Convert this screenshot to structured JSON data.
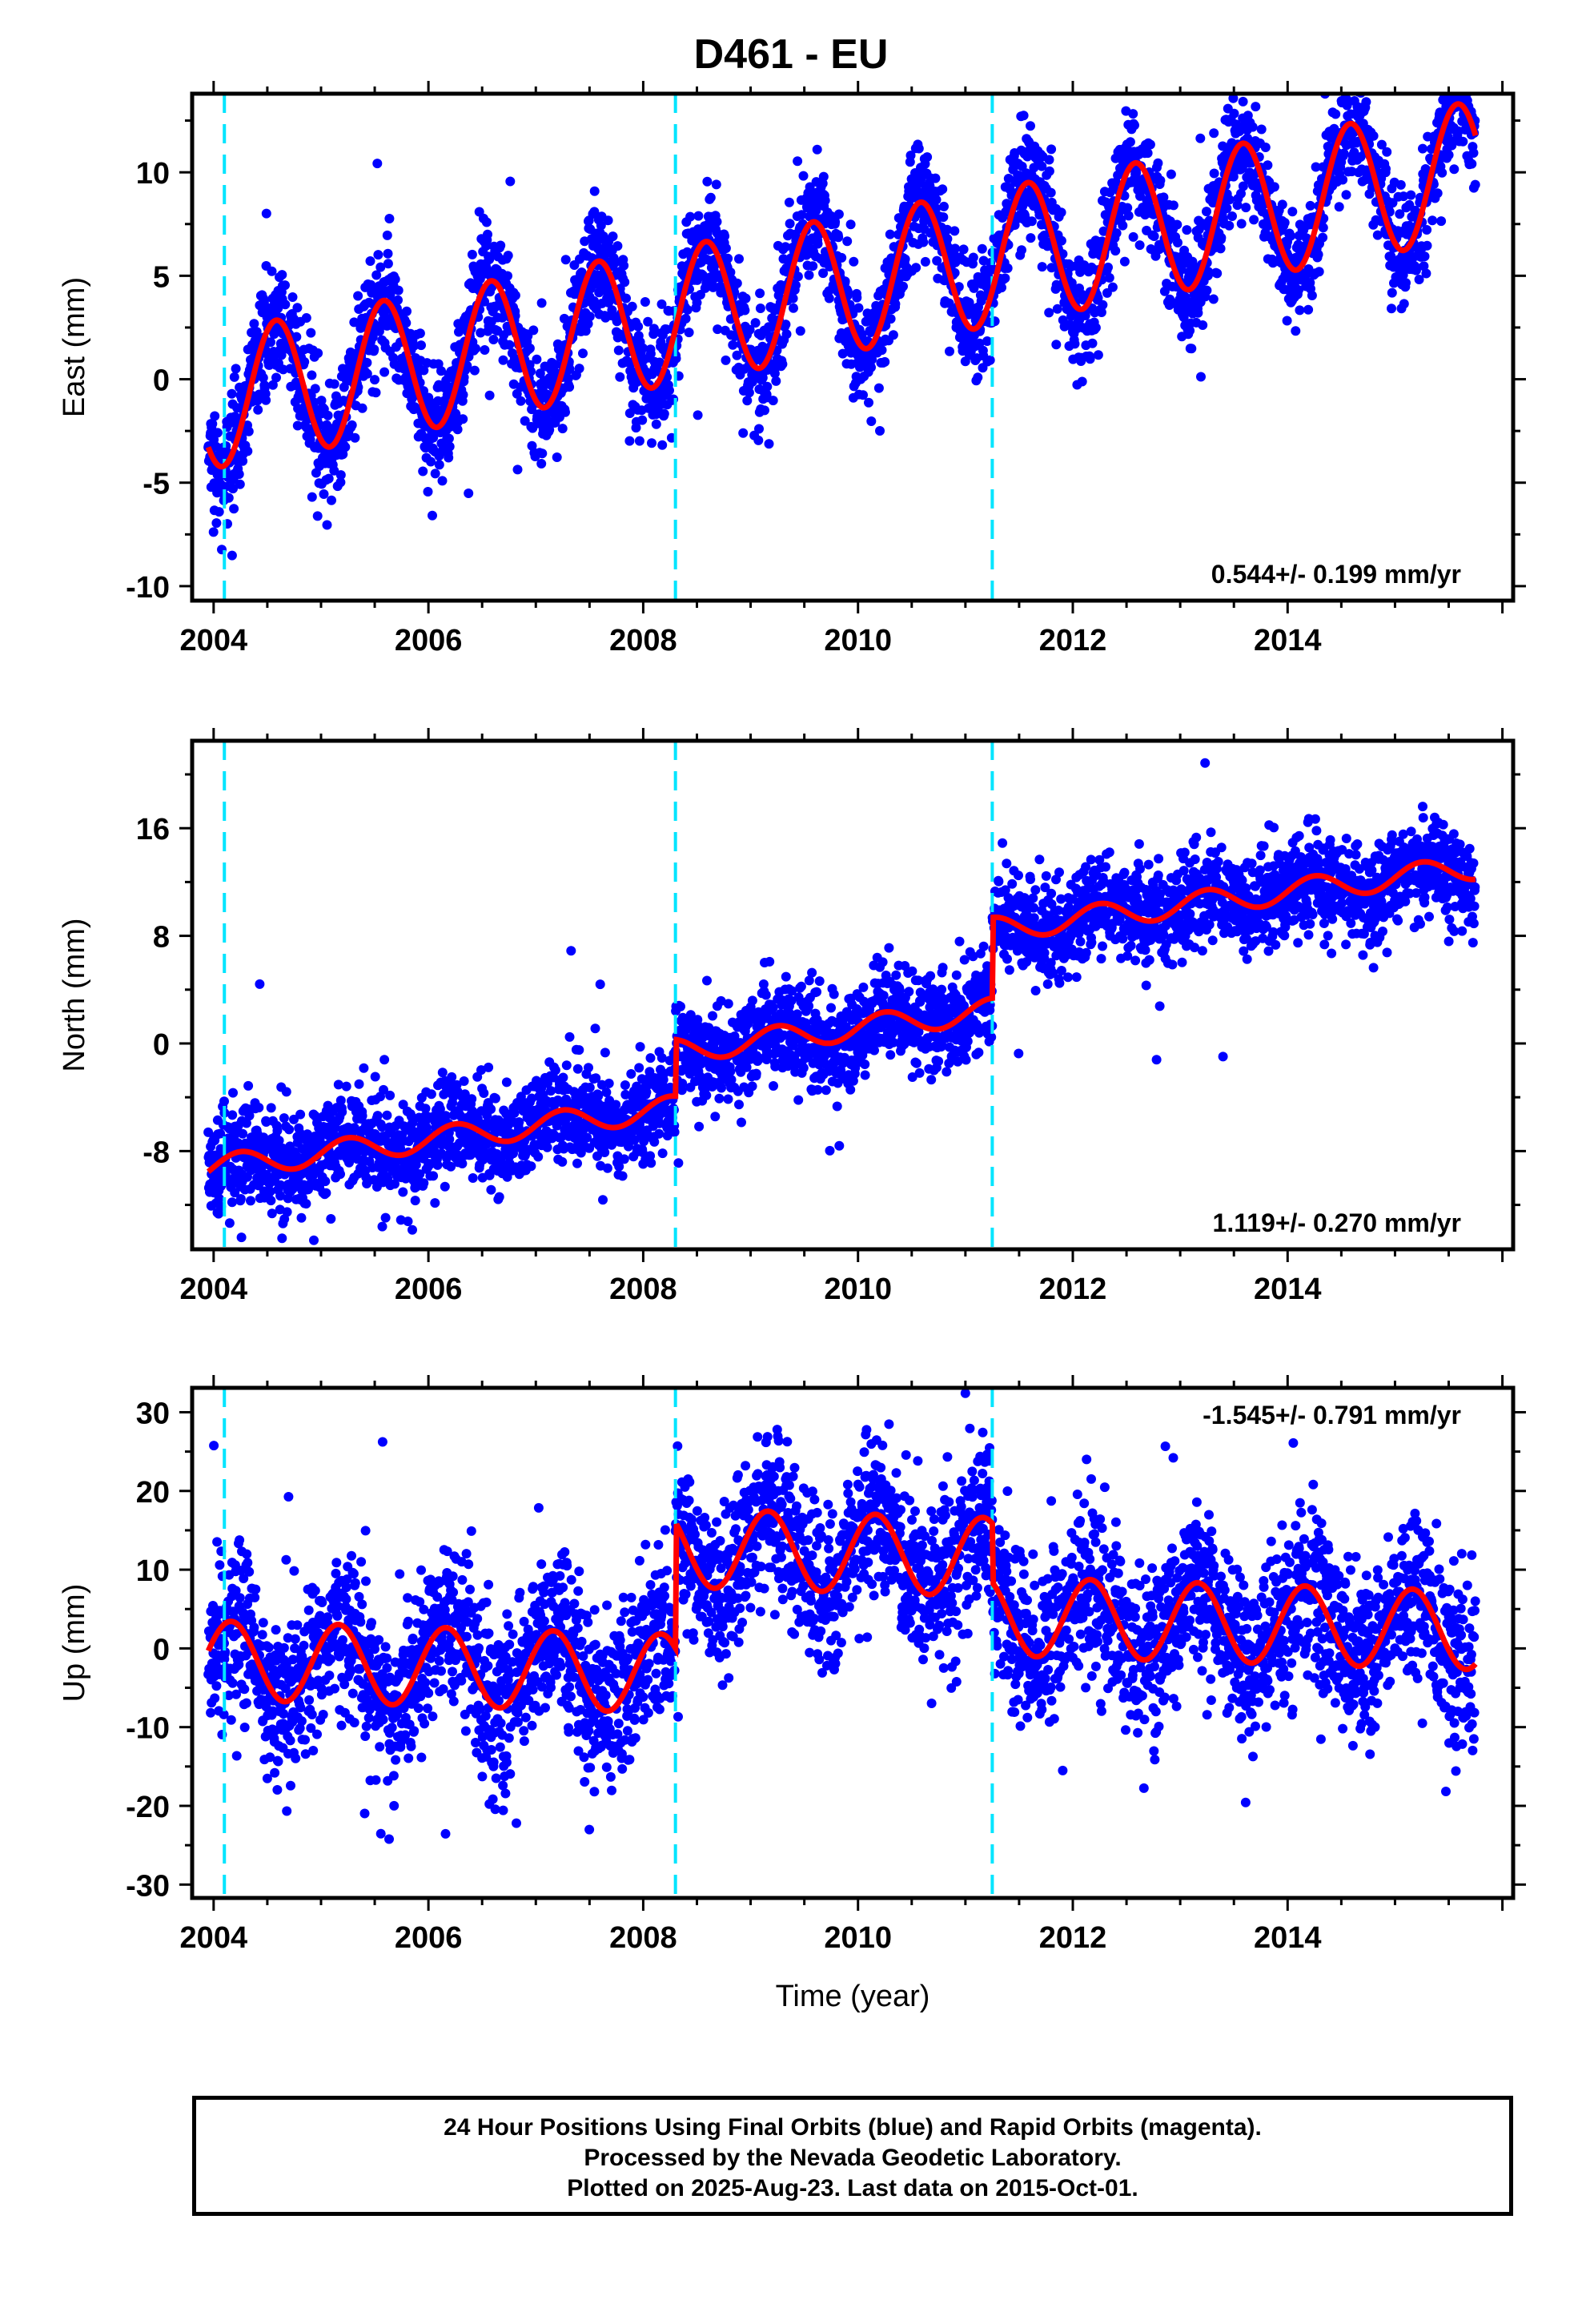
{
  "title": "D461 - EU",
  "colors": {
    "data_points": "#0000ff",
    "model_fit": "#ff0000",
    "offset_lines": "#00e5ff",
    "frame": "#000000"
  },
  "footer": {
    "lines": [
      "24 Hour Positions Using Final Orbits (blue) and Rapid Orbits (magenta).",
      "Processed by the Nevada Geodetic Laboratory.",
      "Plotted on 2025-Aug-23. Last data on 2015-Oct-01."
    ]
  },
  "chart_data": [
    {
      "type": "scatter",
      "ylabel": "East (mm)",
      "xlabel": "",
      "xlim": [
        2003.8,
        2016.1
      ],
      "ylim": [
        -10.7,
        13.8
      ],
      "xticks": [
        2004,
        2006,
        2008,
        2010,
        2012,
        2014
      ],
      "yticks": [
        -10,
        -5,
        0,
        5,
        10
      ],
      "offsets": [
        2004.1,
        2008.3,
        2011.25
      ],
      "rate_label": "0.544+/- 0.199 mm/yr",
      "rate_position": "bottom-right",
      "model": {
        "rate": 0.95,
        "intercept": -1.0,
        "ref_year": 2004.0,
        "annual_amplitude": 3.3,
        "annual_phase": 4.2,
        "steps": [],
        "noise": 1.4
      },
      "series": [
        {
          "name": "Final Orbits",
          "color": "#0000ff"
        },
        {
          "name": "Model",
          "color": "#ff0000"
        }
      ]
    },
    {
      "type": "scatter",
      "ylabel": "North (mm)",
      "xlabel": "",
      "xlim": [
        2003.8,
        2016.1
      ],
      "ylim": [
        -15.3,
        22.5
      ],
      "xticks": [
        2004,
        2006,
        2008,
        2010,
        2012,
        2014
      ],
      "yticks": [
        -8,
        0,
        8,
        16
      ],
      "offsets": [
        2004.1,
        2008.3,
        2011.25
      ],
      "rate_label": "1.119+/- 0.270 mm/yr",
      "rate_position": "bottom-right",
      "model": {
        "rate": 1.03,
        "intercept": -9.2,
        "ref_year": 2004.0,
        "annual_amplitude": 0.9,
        "annual_phase": 0.0,
        "steps": [
          [
            2008.3,
            4.2
          ],
          [
            2011.25,
            6.0
          ]
        ],
        "noise": 1.8
      },
      "series": [
        {
          "name": "Final Orbits",
          "color": "#0000ff"
        },
        {
          "name": "Model",
          "color": "#ff0000"
        }
      ]
    },
    {
      "type": "scatter",
      "ylabel": "Up (mm)",
      "xlabel": "Time (year)",
      "xlim": [
        2003.8,
        2016.1
      ],
      "ylim": [
        -31.7,
        33.1
      ],
      "xticks": [
        2004,
        2006,
        2008,
        2010,
        2012,
        2014
      ],
      "yticks": [
        -30,
        -20,
        -10,
        0,
        10,
        20,
        30
      ],
      "offsets": [
        2004.1,
        2008.3,
        2011.25
      ],
      "rate_label": "-1.545+/- 0.791 mm/yr",
      "rate_position": "top-right",
      "model": {
        "rate": -0.4,
        "intercept": -1.5,
        "ref_year": 2004.0,
        "annual_amplitude": 5.0,
        "annual_phase": 0.55,
        "steps": [
          [
            2008.3,
            16.0
          ],
          [
            2011.25,
            -7.5
          ]
        ],
        "noise": 5.2
      },
      "series": [
        {
          "name": "Final Orbits",
          "color": "#0000ff"
        },
        {
          "name": "Model",
          "color": "#ff0000"
        }
      ]
    }
  ]
}
